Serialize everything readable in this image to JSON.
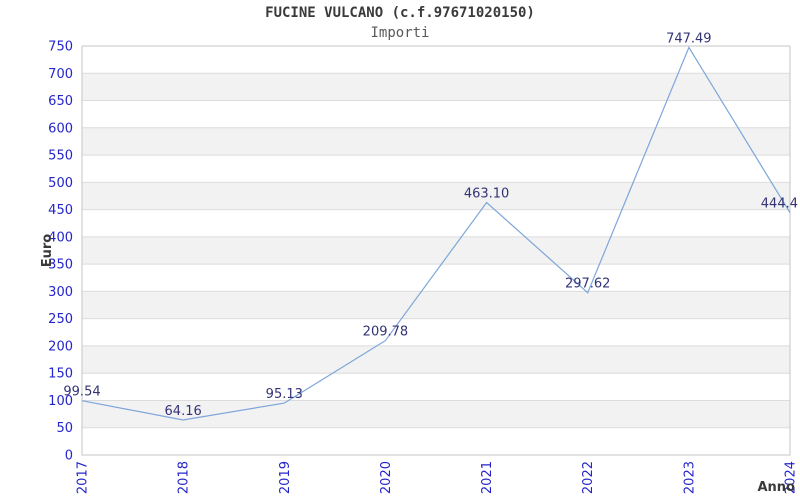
{
  "header": {
    "title": "FUCINE VULCANO (c.f.97671020150)",
    "subtitle": "Importi"
  },
  "chart_data": {
    "type": "line",
    "title": "FUCINE VULCANO (c.f.97671020150)",
    "subtitle": "Importi",
    "xlabel": "Anno",
    "ylabel": "Euro",
    "categories": [
      "2017",
      "2018",
      "2019",
      "2020",
      "2021",
      "2022",
      "2023",
      "2024"
    ],
    "values": [
      99.54,
      64.16,
      95.13,
      209.78,
      463.1,
      297.62,
      747.49,
      444.4
    ],
    "point_labels": [
      "99.54",
      "64.16",
      "95.13",
      "209.78",
      "463.10",
      "297.62",
      "747.49",
      "444.4"
    ],
    "ylim": [
      0,
      750
    ],
    "y_tick_step": 50,
    "grid": true,
    "alternating_bands": true,
    "legend": "none",
    "colors": {
      "line": "#7ea6da",
      "tick_label": "#2424cc",
      "point_label": "#333377",
      "band": "#f2f2f2",
      "gridline": "#dcdcdc",
      "plot_border": "#c6c6c6",
      "title": "#3a3a3a",
      "subtitle": "#5a5a5a",
      "axis_title": "#3a3a3a"
    }
  }
}
